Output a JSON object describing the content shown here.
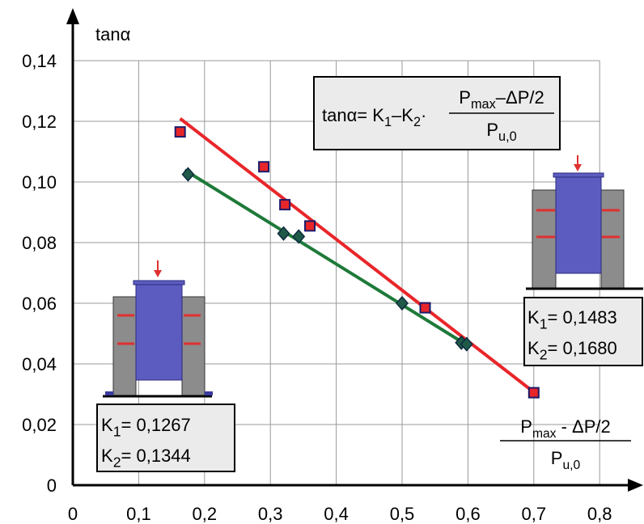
{
  "chart_data": {
    "type": "scatter",
    "y_label": "tanα",
    "x_label": {
      "numerator": [
        "P",
        "max",
        " - ΔP/2"
      ],
      "denominator": [
        "P",
        "u,0"
      ]
    },
    "formula": {
      "left": [
        "tanα= K",
        "1",
        "–K",
        "2",
        "·"
      ],
      "numerator": [
        "P",
        "max",
        "–ΔP/2"
      ],
      "denominator": [
        "P",
        "u,0"
      ]
    },
    "boxes": [
      {
        "lines": [
          [
            "K",
            "1",
            "= 0,1267"
          ],
          [
            "K",
            "2",
            "= 0,1344"
          ]
        ]
      },
      {
        "lines": [
          [
            "K",
            "1",
            "= 0,1483"
          ],
          [
            "K",
            "2",
            "= 0,1680"
          ]
        ]
      }
    ],
    "xlim": [
      0,
      0.86
    ],
    "ylim": [
      0,
      0.15
    ],
    "xticks": [
      0,
      {
        "value": 0.1,
        "label": "0,1"
      },
      {
        "value": 0.2,
        "label": "0,2"
      },
      {
        "value": 0.3,
        "label": "0,3"
      },
      {
        "value": 0.4,
        "label": "0,4"
      },
      {
        "value": 0.5,
        "label": "0,5"
      },
      {
        "value": 0.6,
        "label": "0,6"
      },
      {
        "value": 0.7,
        "label": "0,7"
      },
      {
        "value": 0.8,
        "label": "0,8"
      }
    ],
    "yticks": [
      0,
      {
        "value": 0.02,
        "label": "0,02"
      },
      {
        "value": 0.04,
        "label": "0,04"
      },
      {
        "value": 0.06,
        "label": "0,06"
      },
      {
        "value": 0.08,
        "label": "0,08"
      },
      {
        "value": 0.1,
        "label": "0,10"
      },
      {
        "value": 0.12,
        "label": "0,12"
      },
      {
        "value": 0.14,
        "label": "0,14"
      }
    ],
    "grid": true,
    "series": [
      {
        "color": "#e8262a",
        "marker": "square",
        "x": [
          0.163,
          0.29,
          0.322,
          0.36,
          0.535,
          0.7
        ],
        "values": [
          0.1165,
          0.105,
          0.0925,
          0.0855,
          0.0585,
          0.0305
        ]
      },
      {
        "color": "#1f5a48",
        "marker": "diamond",
        "x": [
          0.175,
          0.32,
          0.343,
          0.5,
          0.59,
          0.598
        ],
        "values": [
          0.1025,
          0.083,
          0.082,
          0.06,
          0.047,
          0.0465
        ]
      }
    ],
    "fit_lines": [
      {
        "color": "#e8262a",
        "x": [
          0.163,
          0.7
        ],
        "values": [
          0.1209,
          0.0307
        ]
      },
      {
        "color": "#1e7a3a",
        "x": [
          0.17,
          0.6
        ],
        "values": [
          0.1039,
          0.046
        ]
      }
    ]
  }
}
